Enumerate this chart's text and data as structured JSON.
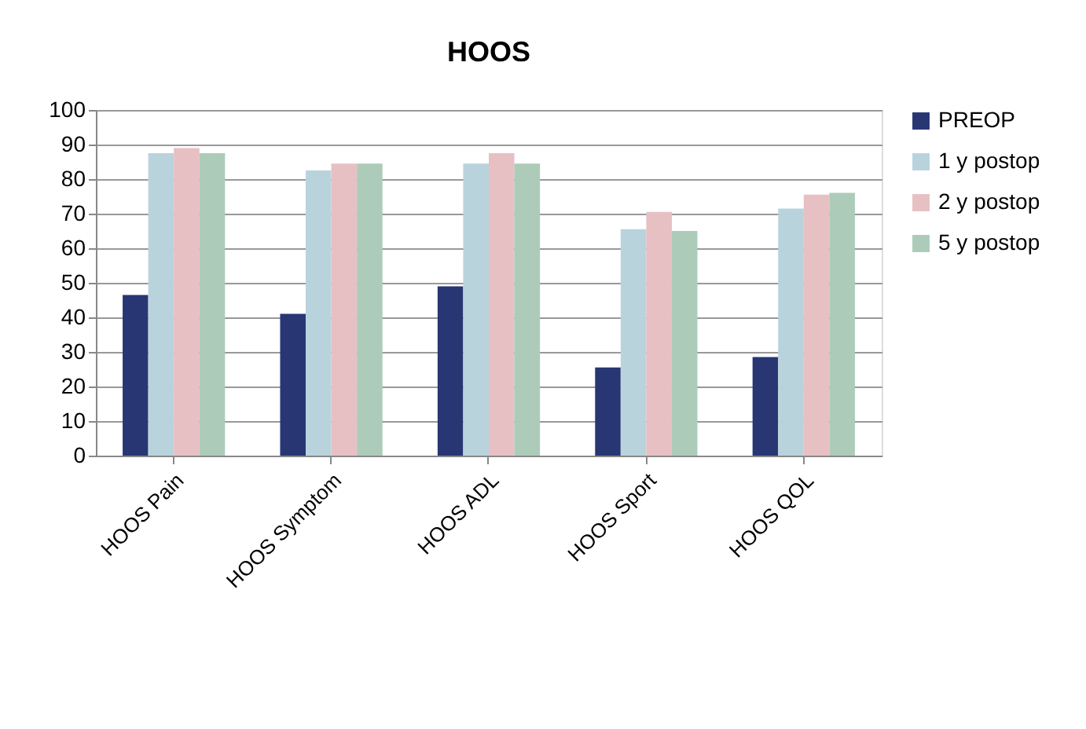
{
  "chart_data": {
    "type": "bar",
    "title": "HOOS",
    "categories": [
      "HOOS Pain",
      "HOOS Symptom",
      "HOOS ADL",
      "HOOS Sport",
      "HOOS QOL"
    ],
    "series": [
      {
        "name": "PREOP",
        "color": "#283673",
        "values": [
          46.5,
          41,
          49,
          25.5,
          28.5
        ]
      },
      {
        "name": "1 y postop",
        "color": "#b9d3dd",
        "values": [
          87.5,
          82.5,
          84.5,
          65.5,
          71.5
        ]
      },
      {
        "name": "2 y postop",
        "color": "#e7c0c4",
        "values": [
          89,
          84.5,
          87.5,
          70.5,
          75.5
        ]
      },
      {
        "name": "5 y postop",
        "color": "#adcbb9",
        "values": [
          87.5,
          84.5,
          84.5,
          65,
          76
        ]
      }
    ],
    "ylim": [
      0,
      100
    ],
    "yticks": [
      0,
      10,
      20,
      30,
      40,
      50,
      60,
      70,
      80,
      90,
      100
    ],
    "grid": "y",
    "legend": "right"
  }
}
